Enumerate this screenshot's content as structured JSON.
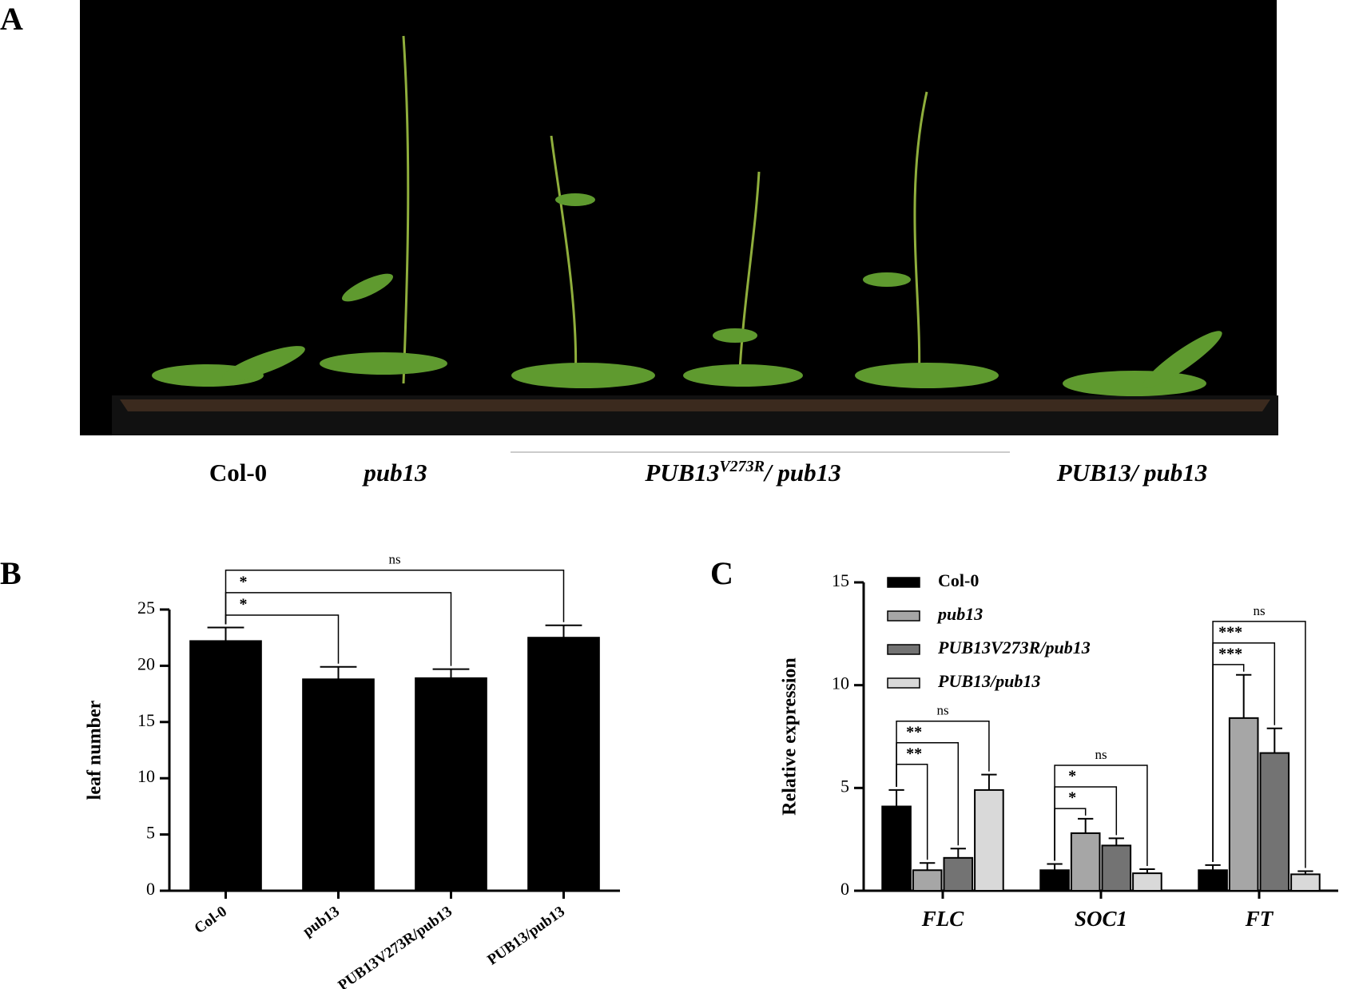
{
  "panel_labels": [
    "A",
    "B",
    "C"
  ],
  "photo": {
    "genotypes": [
      "Col-0",
      "pub13",
      {
        "base": "PUB13",
        "sup": "V273R",
        "rest": "/ pub13"
      },
      "PUB13/ pub13"
    ]
  },
  "chart_data": [
    {
      "type": "bar",
      "ylabel": "leaf number",
      "categories": [
        "Col-0",
        "pub13",
        "PUB13V273R/pub13",
        "PUB13/pub13"
      ],
      "series": [
        {
          "color": "#000000",
          "values": [
            22.2,
            18.8,
            18.9,
            22.5
          ],
          "errors": [
            1.2,
            1.1,
            0.8,
            1.1
          ]
        }
      ],
      "ylim": [
        0,
        25
      ],
      "yticks": [
        0,
        5,
        10,
        15,
        20,
        25
      ],
      "annotations": [
        [
          {
            "from": 0,
            "to": 1,
            "label": "*"
          },
          {
            "from": 0,
            "to": 2,
            "label": "*"
          },
          {
            "from": 0,
            "to": 3,
            "label": "ns"
          }
        ]
      ]
    },
    {
      "type": "bar",
      "ylabel": "Relative expression",
      "categories": [
        "FLC",
        "SOC1",
        "FT"
      ],
      "series": [
        {
          "name": "Col-0",
          "color": "#000000",
          "values": [
            4.1,
            1.0,
            1.0
          ],
          "errors": [
            0.8,
            0.3,
            0.25
          ]
        },
        {
          "name": "pub13",
          "color": "#a6a6a6",
          "values": [
            1.0,
            2.8,
            8.4
          ],
          "errors": [
            0.35,
            0.7,
            2.1
          ]
        },
        {
          "name": "PUB13V273R/pub13",
          "color": "#737373",
          "values": [
            1.6,
            2.2,
            6.7
          ],
          "errors": [
            0.45,
            0.35,
            1.2
          ]
        },
        {
          "name": "PUB13/pub13",
          "color": "#d9d9d9",
          "values": [
            4.9,
            0.85,
            0.8
          ],
          "errors": [
            0.75,
            0.2,
            0.15
          ]
        }
      ],
      "ylim": [
        0,
        15
      ],
      "yticks": [
        0,
        5,
        10,
        15
      ],
      "legend": "upper left",
      "annotations": [
        [
          {
            "from": 0,
            "to": 1,
            "label": "**"
          },
          {
            "from": 0,
            "to": 2,
            "label": "**"
          },
          {
            "from": 0,
            "to": 3,
            "label": "ns"
          }
        ],
        [
          {
            "from": 0,
            "to": 1,
            "label": "*"
          },
          {
            "from": 0,
            "to": 2,
            "label": "*"
          },
          {
            "from": 0,
            "to": 3,
            "label": "ns"
          }
        ],
        [
          {
            "from": 0,
            "to": 1,
            "label": "***"
          },
          {
            "from": 0,
            "to": 2,
            "label": "***"
          },
          {
            "from": 0,
            "to": 3,
            "label": "ns"
          }
        ]
      ]
    }
  ]
}
